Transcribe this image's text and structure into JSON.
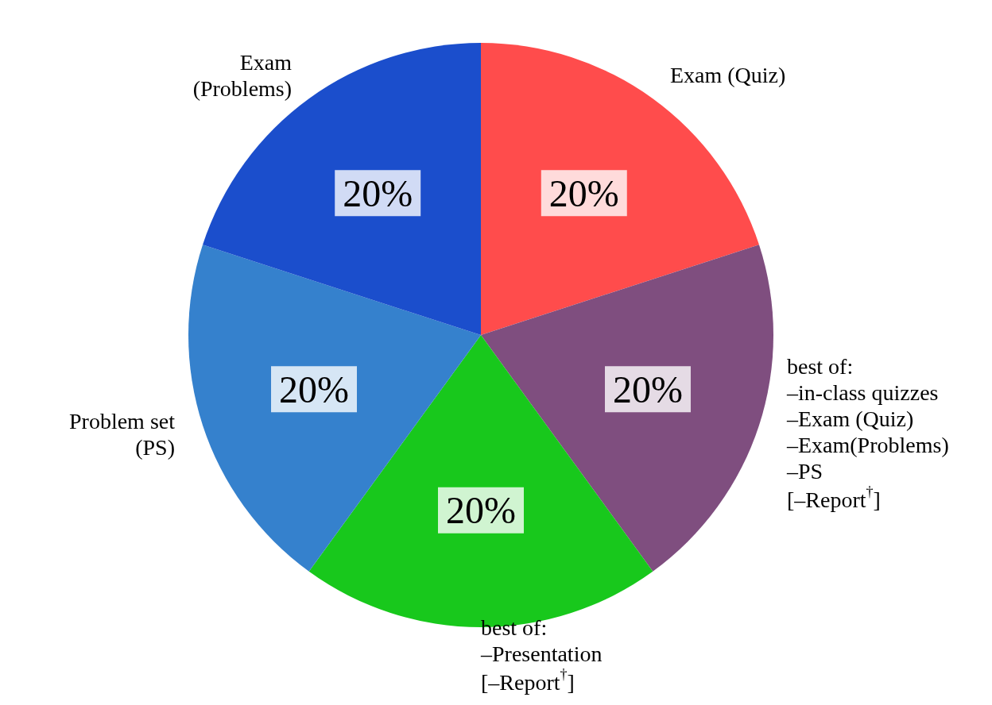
{
  "chart_data": {
    "type": "pie",
    "categories": [
      "Exam (Quiz)",
      "best of:\n–in-class quizzes\n–Exam (Quiz)\n–Exam(Problems)\n–PS\n[–Report$^{†}$]",
      "best of:\n–Presentation\n[–Report$^{†}$]",
      "Problem set\n(PS)",
      "Exam\n(Problems)"
    ],
    "values": [
      20,
      20,
      20,
      20,
      20
    ],
    "value_labels": [
      "20%",
      "20%",
      "20%",
      "20%",
      "20%"
    ],
    "colors": [
      "#ff4c4c",
      "#7f4e7f",
      "#18c81c",
      "#3581cd",
      "#1b4ecc"
    ]
  }
}
